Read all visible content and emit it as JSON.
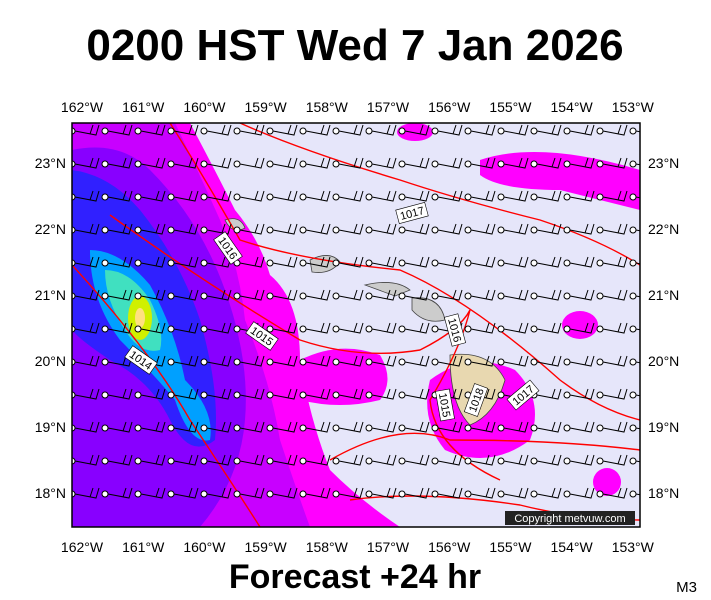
{
  "title": "0200 HST Wed 7 Jan 2026",
  "lon_labels": [
    "162°W",
    "161°W",
    "160°W",
    "159°W",
    "158°W",
    "157°W",
    "156°W",
    "155°W",
    "154°W",
    "153°W"
  ],
  "lat_labels": [
    "23°N",
    "22°N",
    "21°N",
    "20°N",
    "19°N",
    "18°N"
  ],
  "isobar_labels": [
    "1017",
    "1016",
    "1015",
    "1014",
    "1016",
    "1015",
    "1018",
    "1017"
  ],
  "copyright": "Copyright metvuw.com",
  "forecast": "Forecast +24 hr",
  "model": "M3"
}
